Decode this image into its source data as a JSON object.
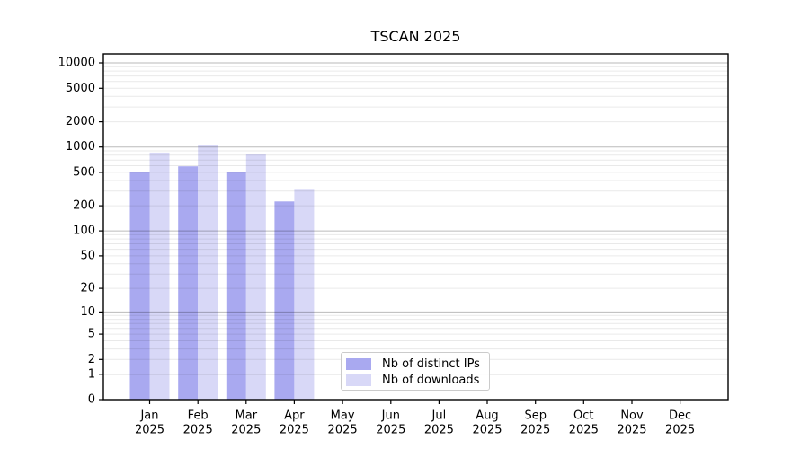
{
  "title": "TSCAN 2025",
  "chart_data": {
    "type": "bar",
    "title": "TSCAN 2025",
    "x": {
      "months": [
        "Jan",
        "Feb",
        "Mar",
        "Apr",
        "May",
        "Jun",
        "Jul",
        "Aug",
        "Sep",
        "Oct",
        "Nov",
        "Dec"
      ],
      "year": "2025"
    },
    "y_axis": {
      "scale": "log1p",
      "ticks": [
        0,
        1,
        2,
        5,
        10,
        20,
        50,
        100,
        200,
        500,
        1000,
        2000,
        5000,
        10000
      ],
      "axis_max": 12800,
      "grid": "on",
      "major_decades": [
        1,
        10,
        100,
        1000,
        10000
      ]
    },
    "series": [
      {
        "name": "Nb of distinct IPs",
        "color": "#a9a9f0",
        "values": [
          500,
          590,
          510,
          225,
          null,
          null,
          null,
          null,
          null,
          null,
          null,
          null
        ]
      },
      {
        "name": "Nb of downloads",
        "color": "#d8d8f7",
        "values": [
          860,
          1050,
          820,
          310,
          null,
          null,
          null,
          null,
          null,
          null,
          null,
          null
        ]
      }
    ],
    "legend_position": "bottom-center"
  }
}
